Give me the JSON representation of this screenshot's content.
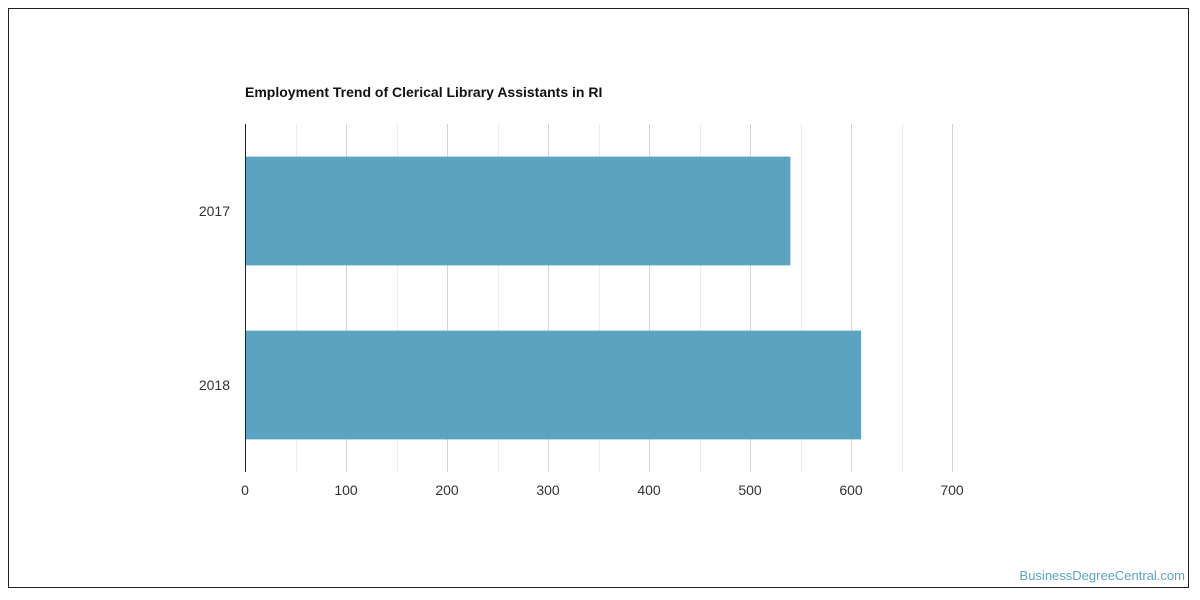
{
  "chart_data": {
    "type": "bar",
    "orientation": "horizontal",
    "title": "Employment Trend of Clerical Library Assistants in RI",
    "categories": [
      "2017",
      "2018"
    ],
    "values": [
      540,
      610
    ],
    "xlabel": "",
    "ylabel": "",
    "xlim": [
      0,
      700
    ],
    "x_ticks": [
      0,
      100,
      200,
      300,
      400,
      500,
      600,
      700
    ],
    "grid": true,
    "legend": "none",
    "bar_color": "#5ba3c0"
  },
  "watermark": "BusinessDegreeCentral.com",
  "colors": {
    "bar": "#5ba3c0",
    "grid_major": "#d4d4d4",
    "grid_minor": "#ececec",
    "axis": "#222222",
    "tick_label": "#333333",
    "watermark": "#5ba4c0"
  }
}
